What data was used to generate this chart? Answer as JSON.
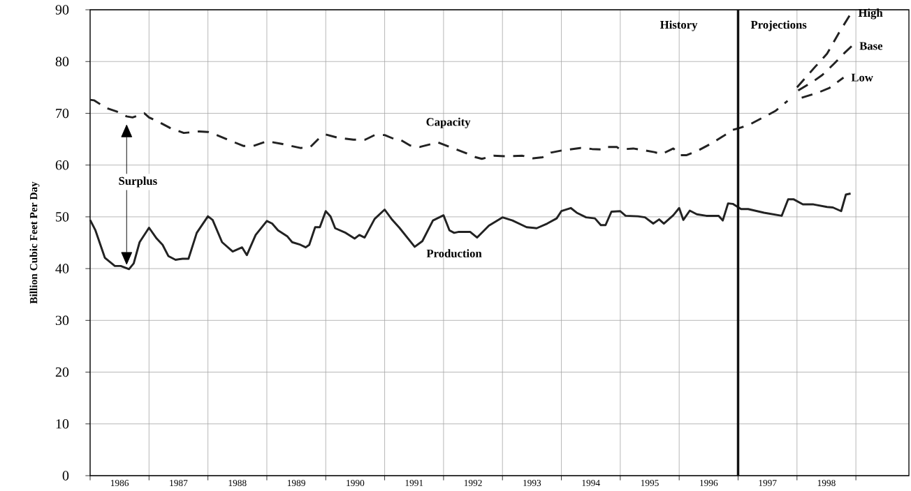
{
  "chart_data": {
    "type": "line",
    "ylabel": "Billion Cubic Feet Per Day",
    "xlim": [
      1986,
      1999.9
    ],
    "ylim": [
      0,
      90
    ],
    "xticks": [
      {
        "value": 1986,
        "label": null
      },
      {
        "value": 1987,
        "label": null
      },
      {
        "value": 1988,
        "label": null
      },
      {
        "value": 1989,
        "label": null
      },
      {
        "value": 1990,
        "label": null
      },
      {
        "value": 1991,
        "label": null
      },
      {
        "value": 1992,
        "label": null
      },
      {
        "value": 1993,
        "label": null
      },
      {
        "value": 1994,
        "label": null
      },
      {
        "value": 1995,
        "label": null
      },
      {
        "value": 1996,
        "label": null
      },
      {
        "value": 1997,
        "label": null
      },
      {
        "value": 1998,
        "label": null
      },
      {
        "value": 1999,
        "label": null
      },
      {
        "value": 1986.5,
        "label": "1986"
      },
      {
        "value": 1987.5,
        "label": "1987"
      },
      {
        "value": 1988.5,
        "label": "1988"
      },
      {
        "value": 1989.5,
        "label": "1989"
      },
      {
        "value": 1990.5,
        "label": "1990"
      },
      {
        "value": 1991.5,
        "label": "1991"
      },
      {
        "value": 1992.5,
        "label": "1992"
      },
      {
        "value": 1993.5,
        "label": "1993"
      },
      {
        "value": 1994.5,
        "label": "1994"
      },
      {
        "value": 1995.5,
        "label": "1995"
      },
      {
        "value": 1996.5,
        "label": "1996"
      },
      {
        "value": 1997.5,
        "label": "1997"
      },
      {
        "value": 1998.5,
        "label": "1998"
      }
    ],
    "yticks": [
      0,
      10,
      20,
      30,
      40,
      50,
      60,
      70,
      80,
      90
    ],
    "grid": true,
    "series": [
      {
        "name": "Capacity",
        "color": "#222222",
        "line_style": "dashed",
        "x": [
          1986.0,
          1986.07,
          1986.26,
          1986.46,
          1986.62,
          1986.72,
          1986.92,
          1987.0,
          1987.17,
          1987.37,
          1987.59,
          1987.85,
          1988.0,
          1988.13,
          1988.32,
          1988.6,
          1988.77,
          1989.0,
          1989.25,
          1989.57,
          1989.74,
          1989.88,
          1990.0,
          1990.2,
          1990.47,
          1990.67,
          1990.83,
          1991.0,
          1991.15,
          1991.25,
          1991.43,
          1991.6,
          1991.9,
          1992.08,
          1992.36,
          1992.55,
          1992.65,
          1992.85,
          1993.05,
          1993.34,
          1993.52,
          1993.68,
          1993.82,
          1994.0,
          1994.32,
          1994.52,
          1994.72,
          1994.78,
          1994.94,
          1995.0,
          1995.22,
          1995.43,
          1995.58,
          1995.7,
          1995.9,
          1996.02,
          1996.12,
          1996.32,
          1996.55,
          1996.75,
          1996.91,
          1997.01,
          1997.19,
          1997.46,
          1997.64,
          1997.84
        ],
        "values": [
          72.6,
          72.5,
          71.1,
          70.3,
          69.4,
          69.2,
          70.0,
          69.2,
          68.3,
          67.1,
          66.2,
          66.5,
          66.4,
          65.9,
          65.0,
          63.7,
          63.7,
          64.6,
          64.1,
          63.3,
          63.5,
          65.1,
          65.9,
          65.3,
          64.9,
          64.9,
          65.8,
          65.8,
          65.1,
          65.0,
          63.8,
          63.5,
          64.4,
          63.6,
          62.4,
          61.5,
          61.2,
          61.8,
          61.7,
          61.8,
          61.3,
          61.5,
          62.4,
          62.8,
          63.3,
          63.1,
          63.0,
          63.5,
          63.5,
          63.0,
          63.2,
          62.8,
          62.5,
          62.1,
          63.2,
          61.9,
          61.9,
          62.8,
          64.2,
          65.6,
          66.8,
          67.1,
          67.8,
          69.4,
          70.5,
          72.4
        ]
      },
      {
        "name": "High",
        "color": "#222222",
        "line_style": "dashed",
        "x": [
          1998.0,
          1998.31,
          1998.51,
          1998.71,
          1998.91
        ],
        "values": [
          75.0,
          79.0,
          81.5,
          85.5,
          89.2
        ]
      },
      {
        "name": "Base",
        "color": "#222222",
        "line_style": "dashed",
        "x": [
          1998.02,
          1998.28,
          1998.43,
          1998.63,
          1998.81,
          1998.93
        ],
        "values": [
          74.4,
          76.2,
          77.4,
          79.6,
          81.7,
          83.0
        ]
      },
      {
        "name": "Low",
        "color": "#222222",
        "line_style": "dashed",
        "x": [
          1998.08,
          1998.36,
          1998.55,
          1998.79
        ],
        "values": [
          73.0,
          74.0,
          74.9,
          76.9
        ]
      },
      {
        "name": "Production",
        "color": "#222222",
        "line_style": "solid",
        "x": [
          1986.0,
          1986.09,
          1986.25,
          1986.42,
          1986.52,
          1986.66,
          1986.74,
          1986.84,
          1987.0,
          1987.13,
          1987.23,
          1987.33,
          1987.45,
          1987.57,
          1987.67,
          1987.81,
          1988.0,
          1988.08,
          1988.24,
          1988.42,
          1988.58,
          1988.66,
          1988.81,
          1989.0,
          1989.09,
          1989.19,
          1989.35,
          1989.43,
          1989.57,
          1989.66,
          1989.72,
          1989.82,
          1989.9,
          1990.0,
          1990.08,
          1990.16,
          1990.34,
          1990.49,
          1990.57,
          1990.66,
          1990.83,
          1991.0,
          1991.13,
          1991.25,
          1991.51,
          1991.64,
          1991.82,
          1992.0,
          1992.1,
          1992.18,
          1992.26,
          1992.45,
          1992.57,
          1992.77,
          1993.0,
          1993.17,
          1993.41,
          1993.58,
          1993.76,
          1993.92,
          1994.0,
          1994.16,
          1994.26,
          1994.42,
          1994.57,
          1994.67,
          1994.75,
          1994.85,
          1995.0,
          1995.09,
          1995.3,
          1995.42,
          1995.56,
          1995.66,
          1995.74,
          1995.9,
          1996.0,
          1996.07,
          1996.18,
          1996.3,
          1996.46,
          1996.67,
          1996.74,
          1996.83,
          1996.91,
          1997.05,
          1997.17,
          1997.44,
          1997.74,
          1997.85,
          1997.94,
          1998.1,
          1998.28,
          1998.51,
          1998.61,
          1998.75,
          1998.83,
          1998.91
        ],
        "values": [
          49.4,
          47.4,
          42.1,
          40.5,
          40.5,
          39.9,
          41.0,
          45.1,
          47.9,
          45.8,
          44.6,
          42.4,
          41.7,
          41.9,
          41.9,
          46.9,
          50.1,
          49.4,
          45.1,
          43.3,
          44.1,
          42.6,
          46.5,
          49.2,
          48.7,
          47.4,
          46.2,
          45.1,
          44.6,
          44.1,
          44.6,
          48.0,
          48.0,
          51.1,
          50.1,
          47.8,
          46.9,
          45.8,
          46.5,
          46.0,
          49.6,
          51.4,
          49.4,
          47.9,
          44.2,
          45.3,
          49.3,
          50.3,
          47.4,
          46.9,
          47.1,
          47.1,
          46.0,
          48.3,
          49.9,
          49.3,
          48.0,
          47.8,
          48.7,
          49.7,
          51.1,
          51.7,
          50.8,
          49.9,
          49.7,
          48.4,
          48.4,
          51.0,
          51.1,
          50.2,
          50.1,
          49.9,
          48.7,
          49.5,
          48.7,
          50.3,
          51.7,
          49.4,
          51.2,
          50.5,
          50.2,
          50.2,
          49.3,
          52.6,
          52.5,
          51.5,
          51.5,
          50.8,
          50.2,
          53.4,
          53.4,
          52.4,
          52.4,
          51.9,
          51.8,
          51.1,
          54.3,
          54.5
        ]
      }
    ],
    "ref_lines": [
      {
        "axis": "x",
        "value": 1997,
        "color": "#111111"
      }
    ],
    "annotations": [
      "History",
      "Projections",
      "Surplus"
    ]
  }
}
